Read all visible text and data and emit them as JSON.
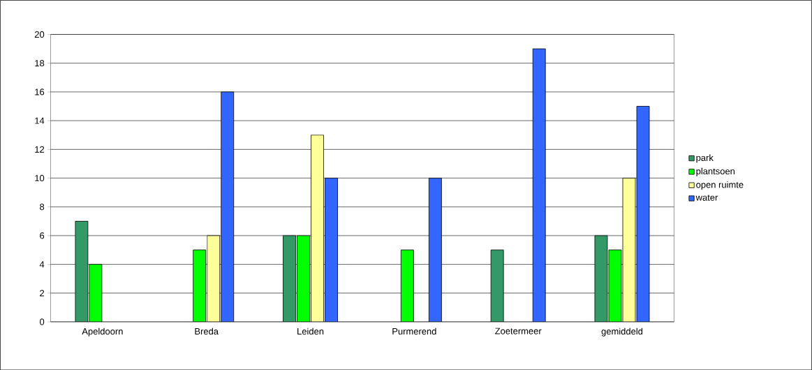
{
  "chart_data": {
    "type": "bar",
    "categories": [
      "Apeldoorn",
      "Breda",
      "Leiden",
      "Purmerend",
      "Zoetermeer",
      "gemiddeld"
    ],
    "series": [
      {
        "name": "park",
        "color": "#339966",
        "values": [
          7,
          null,
          6,
          null,
          5,
          6
        ]
      },
      {
        "name": "plantsoen",
        "color": "#00ff00",
        "values": [
          4,
          5,
          6,
          5,
          null,
          5
        ]
      },
      {
        "name": "open ruimte",
        "color": "#ffff99",
        "values": [
          null,
          6,
          13,
          null,
          null,
          10
        ]
      },
      {
        "name": "water",
        "color": "#3366ff",
        "values": [
          null,
          16,
          10,
          10,
          19,
          15
        ]
      }
    ],
    "ylim": [
      0,
      20
    ],
    "yticks": [
      0,
      2,
      4,
      6,
      8,
      10,
      12,
      14,
      16,
      18,
      20
    ],
    "grid": "y",
    "legend": "right"
  }
}
